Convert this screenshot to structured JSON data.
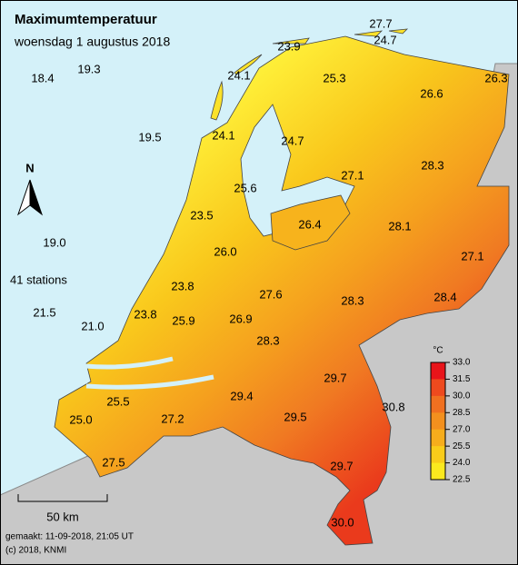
{
  "title": "Maximumtemperatuur",
  "subtitle": "woensdag 1 augustus 2018",
  "north": "N",
  "station_count": "41 stations",
  "stations": [
    "27.7",
    "24.7",
    "23.9",
    "24.1",
    "25.3",
    "26.6",
    "26.3",
    "18.4",
    "19.3",
    "19.5",
    "24.1",
    "24.7",
    "27.1",
    "28.3",
    "25.6",
    "23.5",
    "26.4",
    "28.1",
    "19.0",
    "26.0",
    "27.1",
    "23.8",
    "27.6",
    "28.3",
    "28.4",
    "21.5",
    "23.8",
    "25.9",
    "26.9",
    "21.0",
    "28.3",
    "29.7",
    "30.8",
    "25.5",
    "29.4",
    "29.5",
    "25.0",
    "27.2",
    "29.7",
    "27.5",
    "30.0"
  ],
  "legend": {
    "unit": "°C",
    "ticks": [
      "33.0",
      "31.5",
      "30.0",
      "28.5",
      "27.0",
      "25.5",
      "24.0",
      "22.5"
    ]
  },
  "scale": "50 km",
  "footer": {
    "made": "gemaakt: 11-09-2018, 21:05 UT",
    "copyright": "(c) 2018, KNMI"
  }
}
